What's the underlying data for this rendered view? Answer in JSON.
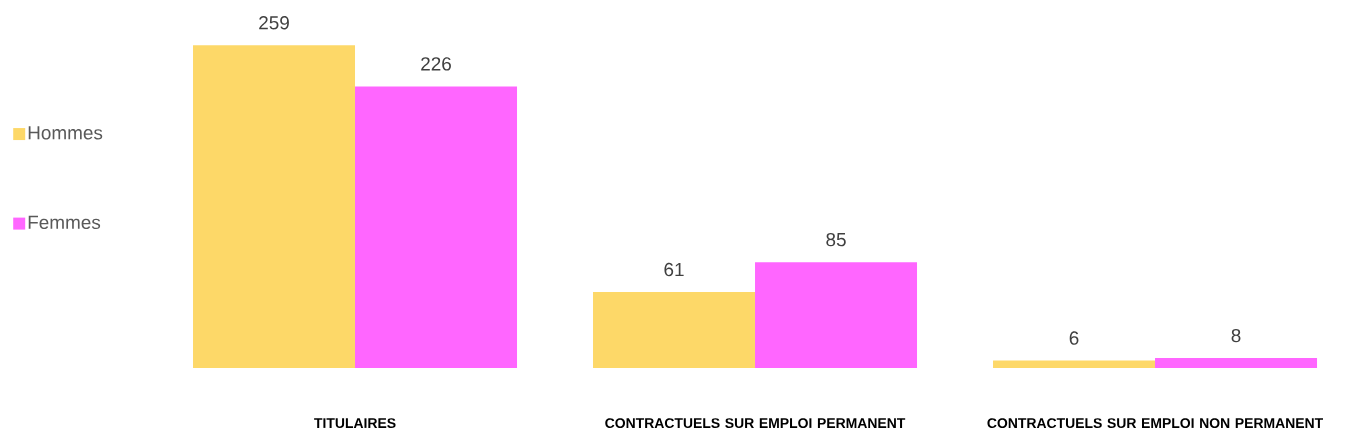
{
  "chart_data": {
    "type": "bar",
    "categories": [
      "TITULAIRES",
      "CONTRACTUELS SUR EMPLOI PERMANENT",
      "CONTRACTUELS SUR EMPLOI NON PERMANENT"
    ],
    "series": [
      {
        "name": "Hommes",
        "color": "#fdd868",
        "values": [
          259,
          61,
          6
        ]
      },
      {
        "name": "Femmes",
        "color": "#ff66ff",
        "values": [
          226,
          85,
          8
        ]
      }
    ],
    "data_labels": true,
    "legend": "left"
  }
}
